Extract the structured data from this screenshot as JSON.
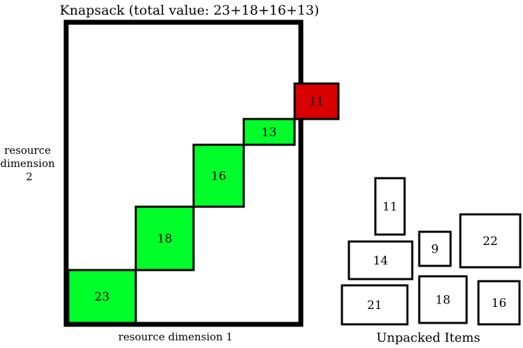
{
  "title": "Knapsack (total value: 23+18+16+13)",
  "axis": {
    "x_label": "resource dimension 1",
    "y_label_lines": [
      "resource",
      "dimension",
      "2"
    ]
  },
  "unpacked_caption": "Unpacked Items",
  "colors": {
    "packed_fill": "#00ff2a",
    "rejected_fill": "#d80000",
    "unpacked_fill": "#ffffff",
    "stroke": "#000000"
  },
  "packed_items": [
    {
      "value": "23",
      "status": "packed"
    },
    {
      "value": "18",
      "status": "packed"
    },
    {
      "value": "16",
      "status": "packed"
    },
    {
      "value": "13",
      "status": "packed"
    },
    {
      "value": "11",
      "status": "rejected"
    }
  ],
  "unpacked_items": [
    {
      "value": "11"
    },
    {
      "value": "14"
    },
    {
      "value": "9"
    },
    {
      "value": "22"
    },
    {
      "value": "21"
    },
    {
      "value": "18"
    },
    {
      "value": "16"
    }
  ]
}
